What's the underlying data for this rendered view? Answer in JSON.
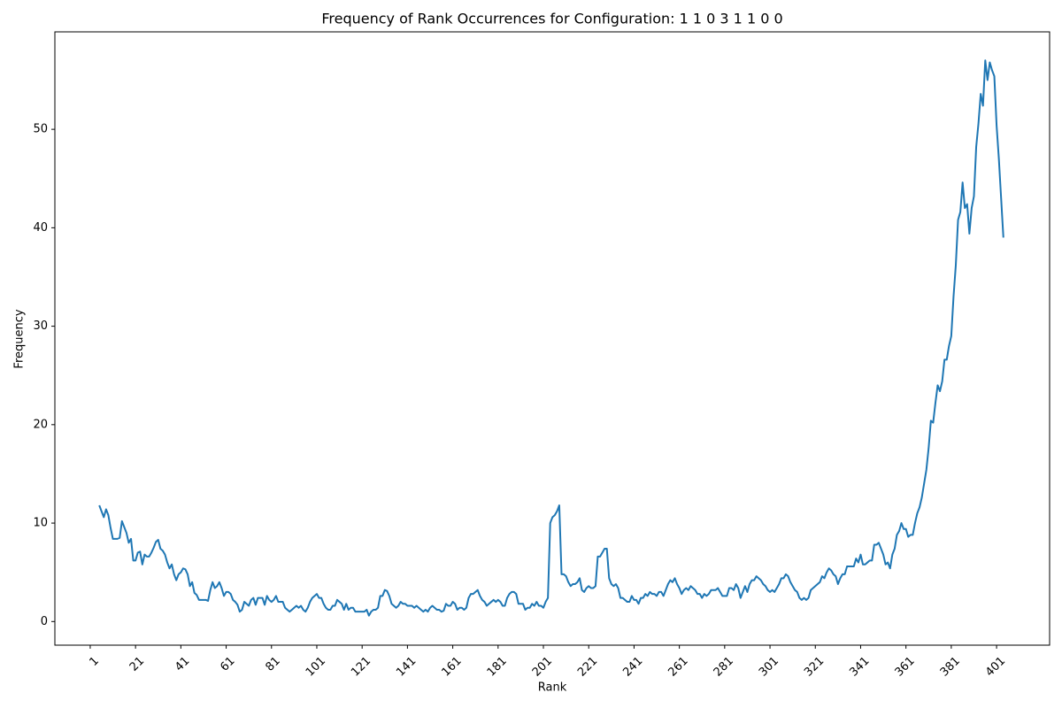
{
  "chart_data": {
    "type": "line",
    "title": "Frequency of Rank Occurrences for Configuration: 1 1 0 3 1 1 0 0",
    "x_label": "Rank",
    "y_label": "Frequency",
    "color": "#1f77b4",
    "xlim": [
      -14.6,
      424.4
    ],
    "ylim": [
      -2.4,
      59.9
    ],
    "xticks": [
      1,
      21,
      41,
      61,
      81,
      101,
      121,
      141,
      161,
      181,
      201,
      221,
      241,
      261,
      281,
      301,
      321,
      341,
      361,
      381,
      401
    ],
    "yticks": [
      0,
      10,
      20,
      30,
      40,
      50
    ],
    "x": [
      5,
      6,
      7,
      8,
      9,
      10,
      11,
      12,
      13,
      14,
      15,
      16,
      17,
      18,
      19,
      20,
      21,
      22,
      23,
      24,
      25,
      26,
      27,
      28,
      29,
      30,
      31,
      32,
      33,
      34,
      35,
      36,
      37,
      38,
      39,
      40,
      41,
      42,
      43,
      44,
      45,
      46,
      47,
      48,
      49,
      50,
      51,
      52,
      53,
      54,
      55,
      56,
      57,
      58,
      59,
      60,
      61,
      62,
      63,
      64,
      65,
      66,
      67,
      68,
      69,
      70,
      71,
      72,
      73,
      74,
      75,
      76,
      77,
      78,
      79,
      80,
      81,
      82,
      83,
      84,
      85,
      86,
      87,
      88,
      89,
      90,
      91,
      92,
      93,
      94,
      95,
      96,
      97,
      98,
      99,
      100,
      101,
      102,
      103,
      104,
      105,
      106,
      107,
      108,
      109,
      110,
      111,
      112,
      113,
      114,
      115,
      116,
      117,
      118,
      119,
      120,
      121,
      122,
      123,
      124,
      125,
      126,
      127,
      128,
      129,
      130,
      131,
      132,
      133,
      134,
      135,
      136,
      137,
      138,
      139,
      140,
      141,
      142,
      143,
      144,
      145,
      146,
      147,
      148,
      149,
      150,
      151,
      152,
      153,
      154,
      155,
      156,
      157,
      158,
      159,
      160,
      161,
      162,
      163,
      164,
      165,
      166,
      167,
      168,
      169,
      170,
      171,
      172,
      173,
      174,
      175,
      176,
      177,
      178,
      179,
      180,
      181,
      182,
      183,
      184,
      185,
      186,
      187,
      188,
      189,
      190,
      191,
      192,
      193,
      194,
      195,
      196,
      197,
      198,
      199,
      200,
      201,
      202,
      203,
      204,
      205,
      206,
      207,
      208,
      209,
      210,
      211,
      212,
      213,
      214,
      215,
      216,
      217,
      218,
      219,
      220,
      221,
      222,
      223,
      224,
      225,
      226,
      227,
      228,
      229,
      230,
      231,
      232,
      233,
      234,
      235,
      236,
      237,
      238,
      239,
      240,
      241,
      242,
      243,
      244,
      245,
      246,
      247,
      248,
      249,
      250,
      251,
      252,
      253,
      254,
      255,
      256,
      257,
      258,
      259,
      260,
      261,
      262,
      263,
      264,
      265,
      266,
      267,
      268,
      269,
      270,
      271,
      272,
      273,
      274,
      275,
      276,
      277,
      278,
      279,
      280,
      281,
      282,
      283,
      284,
      285,
      286,
      287,
      288,
      289,
      290,
      291,
      292,
      293,
      294,
      295,
      296,
      297,
      298,
      299,
      300,
      301,
      302,
      303,
      304,
      305,
      306,
      307,
      308,
      309,
      310,
      311,
      312,
      313,
      314,
      315,
      316,
      317,
      318,
      319,
      320,
      321,
      322,
      323,
      324,
      325,
      326,
      327,
      328,
      329,
      330,
      331,
      332,
      333,
      334,
      335,
      336,
      337,
      338,
      339,
      340,
      341,
      342,
      343,
      344,
      345,
      346,
      347,
      348,
      349,
      350,
      351,
      352,
      353,
      354,
      355,
      356,
      357,
      358,
      359,
      360,
      361,
      362,
      363,
      364,
      365,
      366,
      367,
      368,
      369,
      370,
      371,
      372,
      373,
      374,
      375,
      376,
      377,
      378,
      379,
      380,
      381,
      382,
      383,
      384,
      385,
      386,
      387,
      388,
      389,
      390,
      391,
      392,
      393,
      394,
      395,
      396,
      397,
      398,
      399,
      400,
      401,
      402,
      403,
      404
    ],
    "values": [
      11.8,
      11.2,
      10.6,
      11.4,
      10.8,
      9.5,
      8.4,
      8.4,
      8.4,
      8.5,
      10.2,
      9.6,
      9,
      8,
      8.4,
      6.2,
      6.2,
      7,
      7.1,
      5.8,
      6.8,
      6.6,
      6.6,
      7,
      7.5,
      8.1,
      8.3,
      7.4,
      7.2,
      6.8,
      6,
      5.4,
      5.8,
      4.8,
      4.2,
      4.8,
      5,
      5.4,
      5.3,
      4.8,
      3.6,
      4,
      2.9,
      2.7,
      2.2,
      2.2,
      2.2,
      2.2,
      2.1,
      3.2,
      4,
      3.4,
      3.6,
      4,
      3.4,
      2.6,
      3,
      3,
      2.8,
      2.2,
      2,
      1.7,
      1,
      1.2,
      2,
      1.8,
      1.6,
      2.2,
      2.4,
      1.7,
      2.4,
      2.4,
      2.4,
      1.7,
      2.6,
      2.2,
      2,
      2.2,
      2.6,
      2,
      2,
      2,
      1.4,
      1.2,
      1,
      1.2,
      1.4,
      1.6,
      1.4,
      1.6,
      1.2,
      1,
      1.4,
      2,
      2.4,
      2.6,
      2.8,
      2.4,
      2.4,
      1.8,
      1.4,
      1.2,
      1.2,
      1.6,
      1.6,
      2.2,
      2,
      1.8,
      1.2,
      1.8,
      1.2,
      1.4,
      1.4,
      1,
      1,
      1,
      1,
      1,
      1.2,
      0.6,
      1,
      1.2,
      1.2,
      1.4,
      2.6,
      2.6,
      3.2,
      3.1,
      2.6,
      1.8,
      1.6,
      1.4,
      1.6,
      2,
      1.8,
      1.8,
      1.6,
      1.6,
      1.6,
      1.4,
      1.6,
      1.4,
      1.2,
      1,
      1.2,
      1,
      1.4,
      1.6,
      1.4,
      1.2,
      1.2,
      1,
      1.1,
      1.8,
      1.6,
      1.6,
      2,
      1.8,
      1.2,
      1.4,
      1.4,
      1.2,
      1.4,
      2.4,
      2.8,
      2.8,
      3,
      3.2,
      2.6,
      2.2,
      2,
      1.6,
      1.8,
      2,
      2.2,
      2,
      2.2,
      2,
      1.6,
      1.6,
      2.4,
      2.8,
      3,
      3,
      2.8,
      1.8,
      1.8,
      1.8,
      1.2,
      1.4,
      1.4,
      1.8,
      1.6,
      2,
      1.6,
      1.6,
      1.4,
      2,
      2.4,
      10,
      10.6,
      10.8,
      11.2,
      11.8,
      4.8,
      4.8,
      4.6,
      4,
      3.6,
      3.8,
      3.8,
      4,
      4.4,
      3.2,
      3,
      3.4,
      3.6,
      3.4,
      3.4,
      3.6,
      6.6,
      6.6,
      7,
      7.4,
      7.4,
      4.4,
      3.8,
      3.6,
      3.8,
      3.4,
      2.4,
      2.4,
      2.2,
      2,
      2,
      2.6,
      2.2,
      2.2,
      1.8,
      2.4,
      2.4,
      2.8,
      2.6,
      3,
      2.8,
      2.8,
      2.6,
      3,
      3,
      2.6,
      3.2,
      3.8,
      4.2,
      4,
      4.4,
      3.8,
      3.4,
      2.8,
      3.2,
      3.4,
      3.2,
      3.6,
      3.4,
      3.2,
      2.8,
      2.8,
      2.4,
      2.8,
      2.6,
      2.8,
      3.2,
      3.2,
      3.2,
      3.4,
      3,
      2.6,
      2.6,
      2.6,
      3.4,
      3.4,
      3.2,
      3.8,
      3.4,
      2.4,
      3,
      3.6,
      3,
      3.8,
      4.2,
      4.2,
      4.6,
      4.4,
      4.2,
      3.8,
      3.6,
      3.2,
      3,
      3.2,
      3,
      3.4,
      3.8,
      4.4,
      4.4,
      4.8,
      4.6,
      4,
      3.6,
      3.2,
      3,
      2.4,
      2.2,
      2.4,
      2.2,
      2.4,
      3.2,
      3.4,
      3.6,
      3.8,
      4,
      4.6,
      4.4,
      5,
      5.4,
      5.2,
      4.8,
      4.6,
      3.8,
      4.4,
      4.8,
      4.8,
      5.6,
      5.6,
      5.6,
      5.6,
      6.4,
      6,
      6.8,
      5.8,
      5.8,
      6,
      6.2,
      6.2,
      7.8,
      7.8,
      8,
      7.4,
      6.8,
      5.8,
      6,
      5.4,
      6.8,
      7.4,
      8.8,
      9.2,
      10,
      9.4,
      9.4,
      8.6,
      8.8,
      8.8,
      10,
      11,
      11.6,
      12.6,
      14,
      15.4,
      17.6,
      20.4,
      20.2,
      22.2,
      24,
      23.4,
      24.4,
      26.6,
      26.6,
      28,
      29,
      33,
      36.2,
      40.8,
      41.6,
      44.6,
      42,
      42.4,
      39.4,
      42,
      43.2,
      48.2,
      50.6,
      53.6,
      52.4,
      57,
      55,
      56.8,
      56,
      55.4,
      50.4,
      47,
      43,
      39
    ]
  }
}
